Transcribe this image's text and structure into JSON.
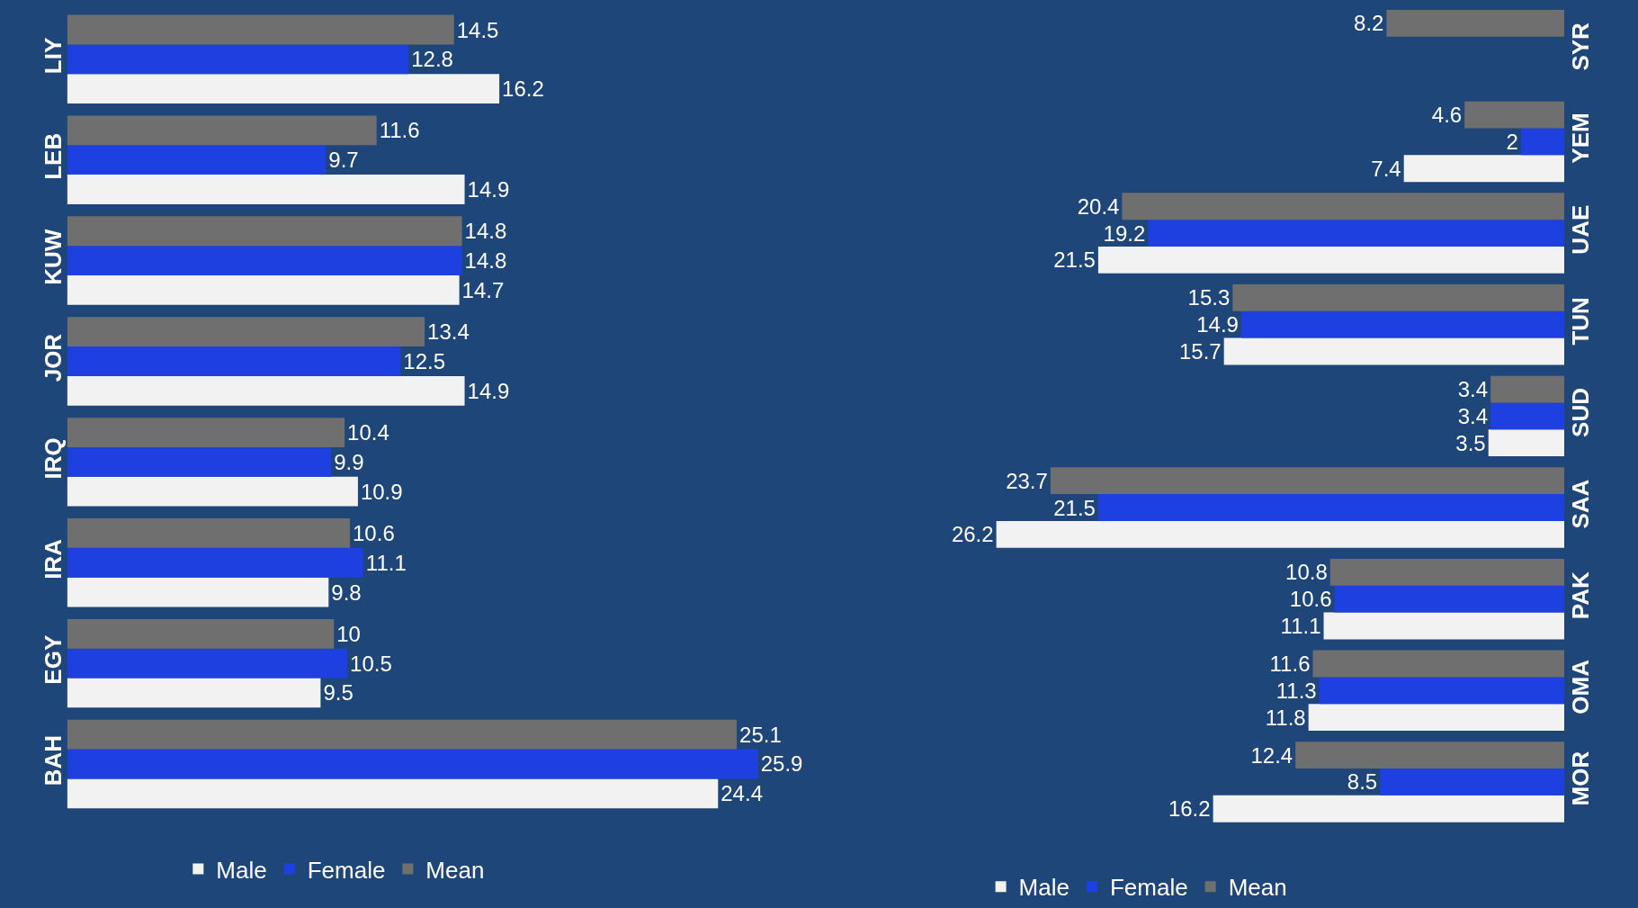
{
  "chart_data": [
    {
      "type": "bar",
      "orientation": "horizontal",
      "categories": [
        "LIY",
        "LEB",
        "KUW",
        "JOR",
        "IRQ",
        "IRA",
        "EGY",
        "BAH"
      ],
      "series": [
        {
          "name": "Male",
          "color": "#f2f2f2",
          "values": [
            16.2,
            14.9,
            14.7,
            14.9,
            10.9,
            9.8,
            9.5,
            24.4
          ]
        },
        {
          "name": "Female",
          "color": "#1f40e0",
          "values": [
            12.8,
            9.7,
            14.8,
            12.5,
            9.9,
            11.1,
            10.5,
            25.9
          ]
        },
        {
          "name": "Mean",
          "color": "#6f6f6f",
          "values": [
            14.5,
            11.6,
            14.8,
            13.4,
            10.4,
            10.6,
            10,
            25.1
          ]
        }
      ],
      "tick_labels": "y",
      "data_labels": true,
      "legend": "bottom",
      "grid": false
    },
    {
      "type": "bar",
      "orientation": "horizontal",
      "categories": [
        "SYR",
        "YEM",
        "UAE",
        "TUN",
        "SUD",
        "SAA",
        "PAK",
        "OMA",
        "MOR"
      ],
      "series": [
        {
          "name": "Male",
          "color": "#f2f2f2",
          "values": [
            null,
            7.4,
            21.5,
            15.7,
            3.5,
            26.2,
            11.1,
            11.8,
            16.2
          ]
        },
        {
          "name": "Female",
          "color": "#1f40e0",
          "values": [
            null,
            2,
            19.2,
            14.9,
            3.4,
            21.5,
            10.6,
            11.3,
            8.5
          ]
        },
        {
          "name": "Mean",
          "color": "#6f6f6f",
          "values": [
            8.2,
            4.6,
            20.4,
            15.3,
            3.4,
            23.7,
            10.8,
            11.6,
            12.4
          ]
        }
      ],
      "tick_labels": "y",
      "data_labels": true,
      "legend": "bottom",
      "grid": false
    }
  ]
}
